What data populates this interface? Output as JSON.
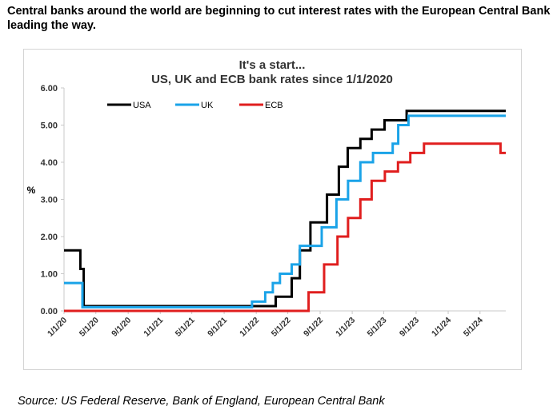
{
  "headline": "Central banks around the world are beginning to cut interest rates with the European Central Bank leading the way.",
  "source": "Source: US Federal Reserve, Bank of England, European Central Bank",
  "chart_data": {
    "type": "line",
    "title": "It's a start...",
    "subtitle": "US, UK and ECB bank rates since 1/1/2020",
    "ylabel": "%",
    "xlabel": "",
    "ylim": [
      0,
      6
    ],
    "yticks": [
      "0.00",
      "1.00",
      "2.00",
      "3.00",
      "4.00",
      "5.00",
      "6.00"
    ],
    "xlim": [
      0,
      1680
    ],
    "xticks": [
      {
        "label": "1/1/20",
        "day": 0
      },
      {
        "label": "5/1/20",
        "day": 121
      },
      {
        "label": "9/1/20",
        "day": 244
      },
      {
        "label": "1/1/21",
        "day": 366
      },
      {
        "label": "5/1/21",
        "day": 486
      },
      {
        "label": "9/1/21",
        "day": 609
      },
      {
        "label": "1/1/22",
        "day": 731
      },
      {
        "label": "5/1/22",
        "day": 851
      },
      {
        "label": "9/1/22",
        "day": 974
      },
      {
        "label": "1/1/23",
        "day": 1096
      },
      {
        "label": "5/1/23",
        "day": 1216
      },
      {
        "label": "9/1/23",
        "day": 1339
      },
      {
        "label": "1/1/24",
        "day": 1461
      },
      {
        "label": "5/1/24",
        "day": 1582
      }
    ],
    "grid": false,
    "legend": "top-left",
    "series": [
      {
        "name": "USA",
        "color": "#000000",
        "steps": [
          [
            0,
            1.63
          ],
          [
            62,
            1.13
          ],
          [
            75,
            0.13
          ],
          [
            805,
            0.38
          ],
          [
            866,
            0.88
          ],
          [
            897,
            1.63
          ],
          [
            937,
            2.38
          ],
          [
            1000,
            3.13
          ],
          [
            1045,
            3.88
          ],
          [
            1079,
            4.38
          ],
          [
            1127,
            4.63
          ],
          [
            1170,
            4.88
          ],
          [
            1219,
            5.13
          ],
          [
            1303,
            5.38
          ],
          [
            1680,
            5.38
          ]
        ]
      },
      {
        "name": "UK",
        "color": "#1aa3e8",
        "steps": [
          [
            0,
            0.75
          ],
          [
            70,
            0.1
          ],
          [
            715,
            0.25
          ],
          [
            765,
            0.5
          ],
          [
            794,
            0.75
          ],
          [
            821,
            1.0
          ],
          [
            866,
            1.25
          ],
          [
            897,
            1.75
          ],
          [
            980,
            2.25
          ],
          [
            1036,
            3.0
          ],
          [
            1080,
            3.5
          ],
          [
            1127,
            4.0
          ],
          [
            1175,
            4.25
          ],
          [
            1250,
            4.5
          ],
          [
            1271,
            5.0
          ],
          [
            1310,
            5.25
          ],
          [
            1680,
            5.25
          ]
        ]
      },
      {
        "name": "ECB",
        "color": "#e01e1e",
        "steps": [
          [
            0,
            0.0
          ],
          [
            930,
            0.5
          ],
          [
            989,
            1.25
          ],
          [
            1040,
            2.0
          ],
          [
            1080,
            2.5
          ],
          [
            1127,
            3.0
          ],
          [
            1170,
            3.5
          ],
          [
            1220,
            3.75
          ],
          [
            1270,
            4.0
          ],
          [
            1317,
            4.25
          ],
          [
            1369,
            4.5
          ],
          [
            1660,
            4.25
          ],
          [
            1680,
            4.25
          ]
        ]
      }
    ]
  }
}
